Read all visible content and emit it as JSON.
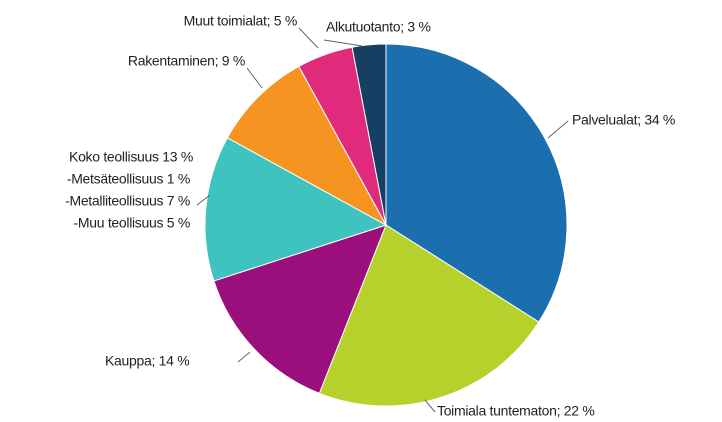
{
  "chart_data": {
    "type": "pie",
    "values": [
      34,
      22,
      14,
      13,
      9,
      5,
      3
    ],
    "value_labels": [
      "Palvelualat; 34 %",
      "Toimiala tuntematon; 22 %",
      "Kauppa; 14 %",
      "Koko teollisuus 13 %",
      "Rakentaminen; 9 %",
      "Muut toimialat; 5 %",
      "Alkutuotanto; 3 %"
    ],
    "colors": [
      "#1c6fae",
      "#b6d02c",
      "#9b0f7c",
      "#3ec3bf",
      "#f59420",
      "#e02a7c",
      "#163f63"
    ],
    "annotations": [
      "-Metsäteollisuus 1 %",
      "-Metalliteollisuus 7 %",
      "-Muu teollisuus 5 %"
    ]
  }
}
